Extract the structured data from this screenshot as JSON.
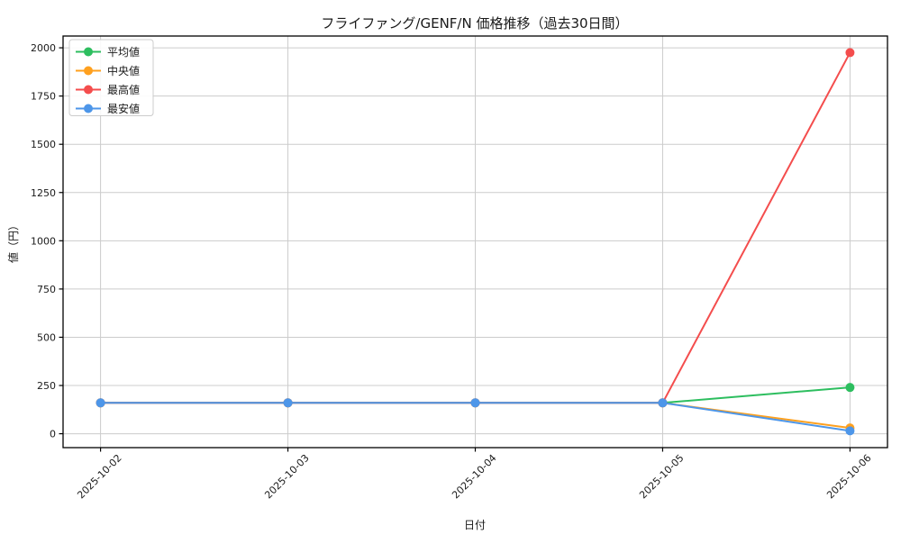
{
  "figure": {
    "background": "#ffffff"
  },
  "chart_data": {
    "type": "line",
    "title": "フライファング/GENF/N 価格推移（過去30日間）",
    "xlabel": "日付",
    "ylabel": "値（円）",
    "categories": [
      "2025-10-02",
      "2025-10-03",
      "2025-10-04",
      "2025-10-05",
      "2025-10-06"
    ],
    "series": [
      {
        "id": "average",
        "name": "平均値",
        "color": "#2dbe5f",
        "values": [
          160,
          160,
          160,
          160,
          240
        ]
      },
      {
        "id": "median",
        "name": "中央値",
        "color": "#ffa01e",
        "values": [
          160,
          160,
          160,
          160,
          30
        ]
      },
      {
        "id": "max",
        "name": "最高値",
        "color": "#f44d4d",
        "values": [
          160,
          160,
          160,
          160,
          1975
        ]
      },
      {
        "id": "min",
        "name": "最安値",
        "color": "#4d96e9",
        "values": [
          160,
          160,
          160,
          160,
          15
        ]
      }
    ],
    "ylim": [
      -72,
      2061
    ],
    "yticks": [
      0,
      250,
      500,
      750,
      1000,
      1250,
      1500,
      1750,
      2000
    ],
    "grid": true,
    "grid_color": "#cccccc",
    "axis_color": "#000000",
    "tick_label_color": "#1a1a1a",
    "legend_position": "upper left",
    "legend_border_color": "#cccccc",
    "legend_background": "rgba(255,255,255,0.9)"
  }
}
